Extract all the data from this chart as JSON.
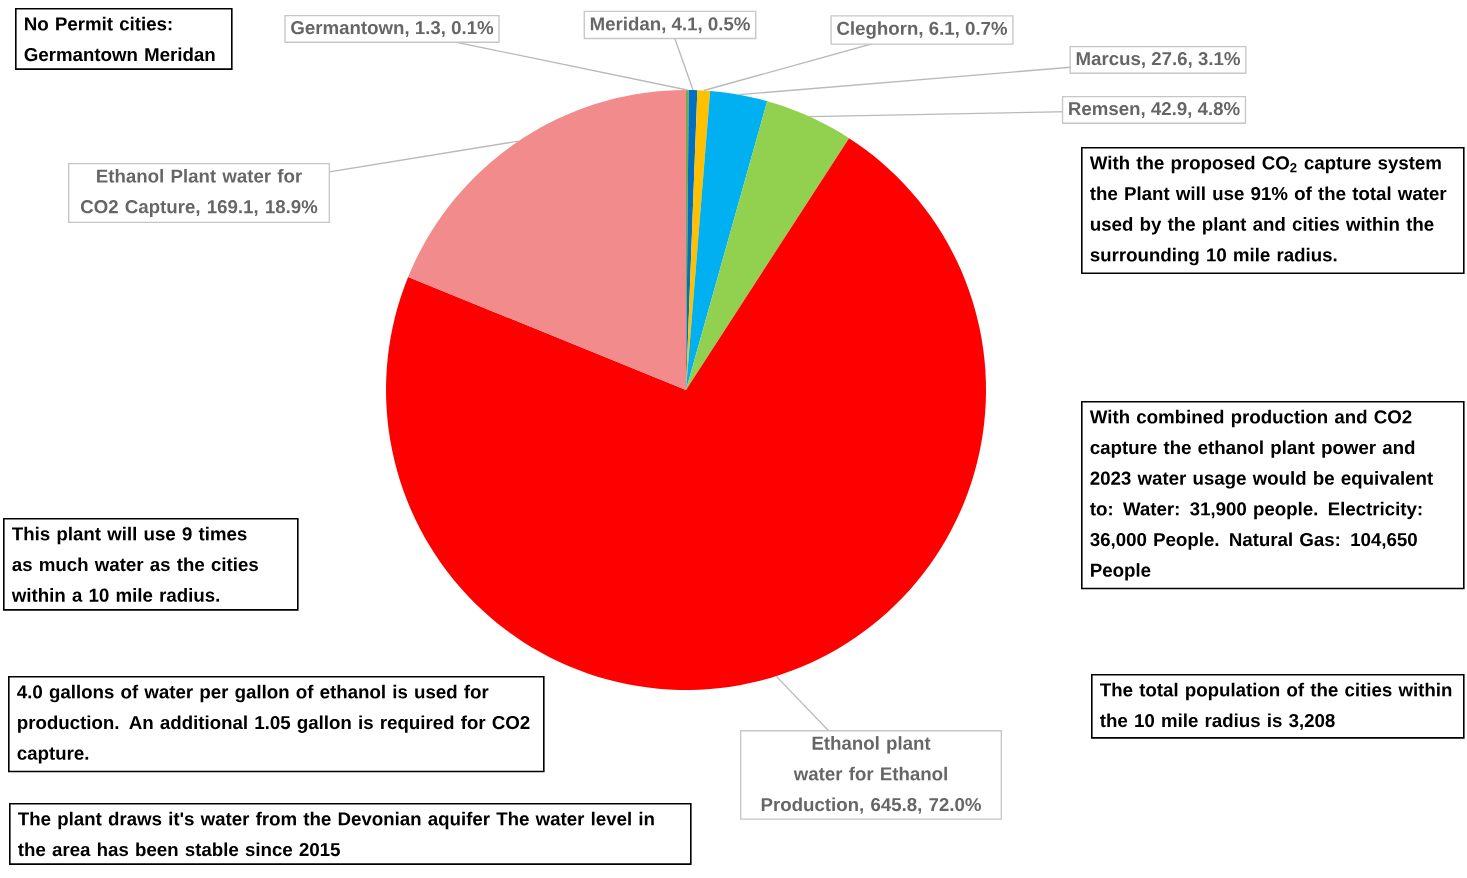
{
  "chart_data": {
    "type": "pie",
    "categories": [
      "Germantown",
      "Meridan",
      "Cleghorn",
      "Marcus",
      "Remsen",
      "Ethanol plant water for Ethanol Production",
      "Ethanol Plant water for CO2 Capture"
    ],
    "values": [
      1.3,
      4.1,
      6.1,
      27.6,
      42.9,
      645.8,
      169.1
    ],
    "value_labels": [
      ", 1.3, 0.1%",
      ", 4.1, 0.5%",
      ", 6.1, 0.7%",
      ", 27.6, 3.1%",
      ", 42.9, 4.8%",
      ", 645.8, 72.0%",
      ", 169.1, 18.9%"
    ],
    "colors": [
      "#70ad47",
      "#0070c0",
      "#ffc000",
      "#00b0f0",
      "#92d050",
      "#ff0000",
      "#f28b8b"
    ],
    "annotations": [
      "No Permit cities: Germantown Meridan",
      "This plant will use 9 times as much water as the cities within a 10 mile radius.",
      "4.0  gallons of water per gallon of ethanol is used  for production.  An additional 1.05 gallon is required for CO2 capture.",
      "The plant draws it's water from the  Devonian aquifer The water level in the area has been stable since 2015",
      "With the proposed CO$_{2}$ capture system the Plant will use 91% of the total water used by the plant and cities within the surrounding 10 mile radius.",
      "With combined production and CO2 capture the ethanol plant power and 2023 water usage  would be equivalent to: Water:  31,900 people. Electricity: 36,000 People. Natural Gas: 104,650 People",
      "The total population of the cities within the 10 mile radius is 3,208"
    ]
  }
}
